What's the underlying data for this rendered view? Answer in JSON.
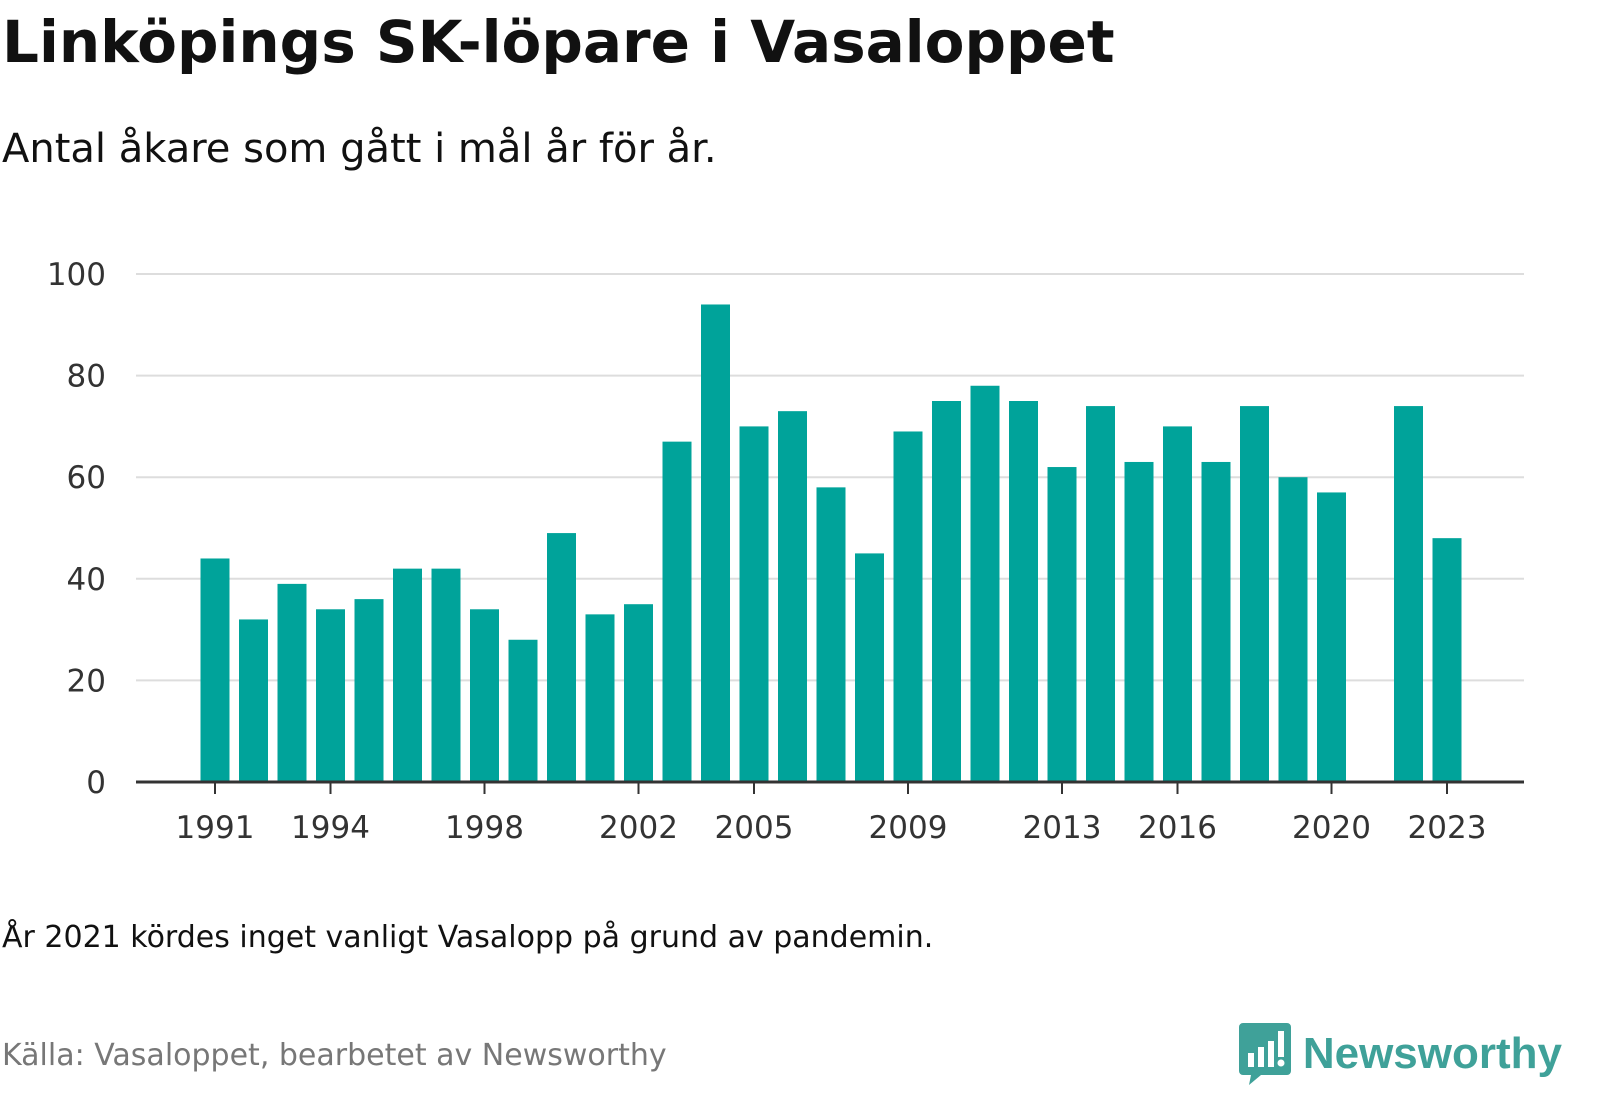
{
  "header": {
    "title": "Linköpings SK-löpare i Vasaloppet",
    "subtitle": "Antal åkare som gått i mål år för år."
  },
  "footer": {
    "note": "År 2021 kördes inget vanligt Vasalopp på grund av pandemin.",
    "source": "Källa: Vasaloppet, bearbetet av Newsworthy",
    "brand": "Newsworthy"
  },
  "colors": {
    "bar": "#00a39a",
    "brand": "#3fa199",
    "grid": "#dddddd",
    "axis": "#333333"
  },
  "chart_data": {
    "type": "bar",
    "title": "Linköpings SK-löpare i Vasaloppet",
    "subtitle": "Antal åkare som gått i mål år för år.",
    "xlabel": "",
    "ylabel": "",
    "ylim": [
      0,
      100
    ],
    "yticks": [
      0,
      20,
      40,
      60,
      80,
      100
    ],
    "xticks": [
      1991,
      1994,
      1998,
      2002,
      2005,
      2009,
      2013,
      2016,
      2020,
      2023
    ],
    "grid": true,
    "categories": [
      1991,
      1992,
      1993,
      1994,
      1995,
      1996,
      1997,
      1998,
      1999,
      2000,
      2001,
      2002,
      2003,
      2004,
      2005,
      2006,
      2007,
      2008,
      2009,
      2010,
      2011,
      2012,
      2013,
      2014,
      2015,
      2016,
      2017,
      2018,
      2019,
      2020,
      2021,
      2022,
      2023
    ],
    "values": [
      44,
      32,
      39,
      34,
      36,
      42,
      42,
      34,
      28,
      49,
      33,
      35,
      67,
      94,
      70,
      73,
      58,
      45,
      69,
      75,
      78,
      75,
      62,
      74,
      63,
      70,
      63,
      74,
      60,
      57,
      null,
      74,
      48
    ]
  }
}
